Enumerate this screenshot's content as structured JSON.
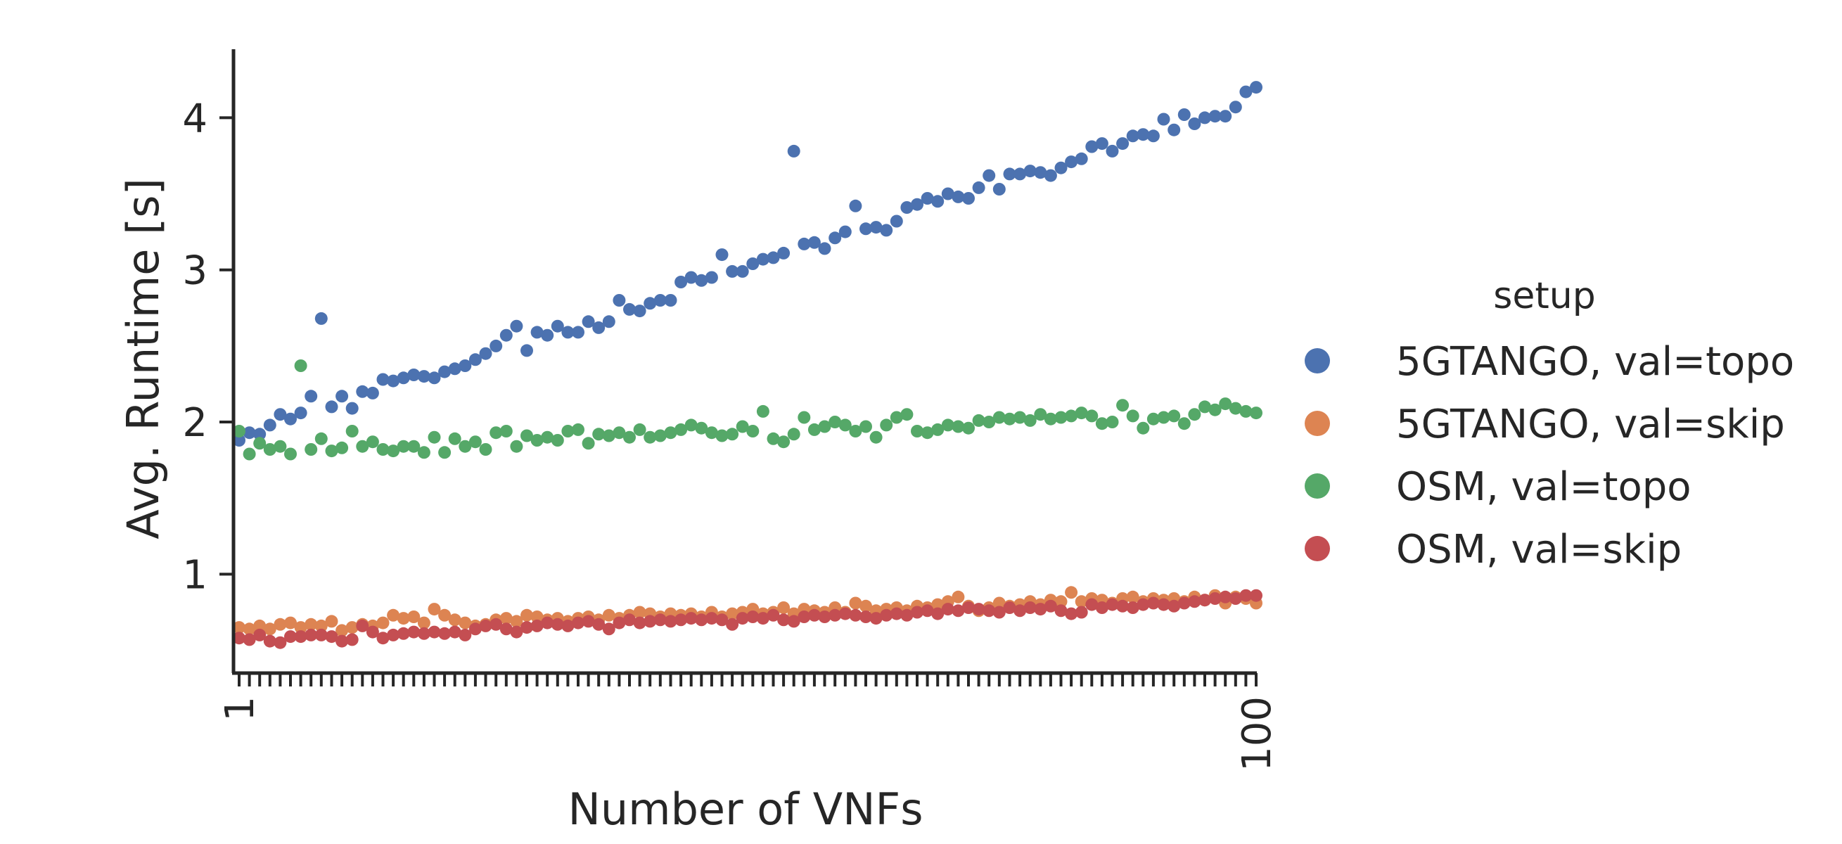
{
  "chart_data": {
    "type": "scatter",
    "title": "",
    "xlabel": "Number of VNFs",
    "ylabel": "Avg. Runtime [s]",
    "xscale": "linear",
    "xlim": [
      1,
      100
    ],
    "ylim": [
      0.35,
      4.45
    ],
    "x_tick_labels": [
      "1",
      "100"
    ],
    "x_tick_values": [
      1,
      100
    ],
    "y_tick_labels": [
      "1",
      "2",
      "3",
      "4"
    ],
    "y_tick_values": [
      1,
      2,
      3,
      4
    ],
    "grid": false,
    "legend": {
      "title": "setup",
      "placement": "right"
    },
    "series": [
      {
        "name": "5GTANGO, val=topo",
        "color": "#4c72b0",
        "x": [
          1,
          2,
          3,
          4,
          5,
          6,
          7,
          8,
          9,
          10,
          11,
          12,
          13,
          14,
          15,
          16,
          17,
          18,
          19,
          20,
          21,
          22,
          23,
          24,
          25,
          26,
          27,
          28,
          29,
          30,
          31,
          32,
          33,
          34,
          35,
          36,
          37,
          38,
          39,
          40,
          41,
          42,
          43,
          44,
          45,
          46,
          47,
          48,
          49,
          50,
          51,
          52,
          53,
          54,
          55,
          56,
          57,
          58,
          59,
          60,
          61,
          62,
          63,
          64,
          65,
          66,
          67,
          68,
          69,
          70,
          71,
          72,
          73,
          74,
          75,
          76,
          77,
          78,
          79,
          80,
          81,
          82,
          83,
          84,
          85,
          86,
          87,
          88,
          89,
          90,
          91,
          92,
          93,
          94,
          95,
          96,
          97,
          98,
          99,
          100
        ],
        "y": [
          1.88,
          1.93,
          1.92,
          1.98,
          2.05,
          2.02,
          2.06,
          2.17,
          2.68,
          2.1,
          2.17,
          2.09,
          2.2,
          2.19,
          2.28,
          2.27,
          2.29,
          2.31,
          2.3,
          2.29,
          2.33,
          2.35,
          2.37,
          2.41,
          2.45,
          2.5,
          2.57,
          2.63,
          2.47,
          2.59,
          2.57,
          2.63,
          2.59,
          2.59,
          2.66,
          2.62,
          2.66,
          2.8,
          2.74,
          2.73,
          2.78,
          2.8,
          2.8,
          2.92,
          2.95,
          2.93,
          2.95,
          3.1,
          2.99,
          2.99,
          3.04,
          3.07,
          3.08,
          3.11,
          3.78,
          3.17,
          3.18,
          3.14,
          3.21,
          3.25,
          3.42,
          3.27,
          3.28,
          3.26,
          3.32,
          3.41,
          3.43,
          3.47,
          3.45,
          3.5,
          3.48,
          3.47,
          3.54,
          3.62,
          3.53,
          3.63,
          3.63,
          3.65,
          3.64,
          3.62,
          3.67,
          3.71,
          3.73,
          3.81,
          3.83,
          3.78,
          3.83,
          3.88,
          3.89,
          3.88,
          3.99,
          3.92,
          4.02,
          3.96,
          4.0,
          4.01,
          4.01,
          4.07,
          4.17,
          4.2
        ]
      },
      {
        "name": "5GTANGO, val=skip",
        "color": "#dd8452",
        "x": [
          1,
          2,
          3,
          4,
          5,
          6,
          7,
          8,
          9,
          10,
          11,
          12,
          13,
          14,
          15,
          16,
          17,
          18,
          19,
          20,
          21,
          22,
          23,
          24,
          25,
          26,
          27,
          28,
          29,
          30,
          31,
          32,
          33,
          34,
          35,
          36,
          37,
          38,
          39,
          40,
          41,
          42,
          43,
          44,
          45,
          46,
          47,
          48,
          49,
          50,
          51,
          52,
          53,
          54,
          55,
          56,
          57,
          58,
          59,
          60,
          61,
          62,
          63,
          64,
          65,
          66,
          67,
          68,
          69,
          70,
          71,
          72,
          73,
          74,
          75,
          76,
          77,
          78,
          79,
          80,
          81,
          82,
          83,
          84,
          85,
          86,
          87,
          88,
          89,
          90,
          91,
          92,
          93,
          94,
          95,
          96,
          97,
          98,
          99,
          100
        ],
        "y": [
          0.65,
          0.64,
          0.66,
          0.64,
          0.67,
          0.68,
          0.65,
          0.67,
          0.66,
          0.69,
          0.63,
          0.65,
          0.67,
          0.66,
          0.68,
          0.73,
          0.71,
          0.72,
          0.68,
          0.77,
          0.73,
          0.7,
          0.68,
          0.66,
          0.67,
          0.7,
          0.71,
          0.69,
          0.73,
          0.72,
          0.7,
          0.71,
          0.69,
          0.71,
          0.72,
          0.7,
          0.73,
          0.71,
          0.73,
          0.75,
          0.74,
          0.72,
          0.74,
          0.73,
          0.74,
          0.72,
          0.75,
          0.72,
          0.74,
          0.75,
          0.77,
          0.74,
          0.75,
          0.78,
          0.74,
          0.77,
          0.76,
          0.75,
          0.78,
          0.75,
          0.81,
          0.79,
          0.76,
          0.77,
          0.78,
          0.76,
          0.79,
          0.78,
          0.8,
          0.82,
          0.85,
          0.79,
          0.76,
          0.78,
          0.81,
          0.79,
          0.8,
          0.82,
          0.8,
          0.83,
          0.82,
          0.88,
          0.82,
          0.84,
          0.83,
          0.81,
          0.84,
          0.85,
          0.82,
          0.84,
          0.83,
          0.84,
          0.82,
          0.85,
          0.83,
          0.86,
          0.81,
          0.85,
          0.84,
          0.81
        ]
      },
      {
        "name": "OSM, val=topo",
        "color": "#55a868",
        "x": [
          1,
          2,
          3,
          4,
          5,
          6,
          7,
          8,
          9,
          10,
          11,
          12,
          13,
          14,
          15,
          16,
          17,
          18,
          19,
          20,
          21,
          22,
          23,
          24,
          25,
          26,
          27,
          28,
          29,
          30,
          31,
          32,
          33,
          34,
          35,
          36,
          37,
          38,
          39,
          40,
          41,
          42,
          43,
          44,
          45,
          46,
          47,
          48,
          49,
          50,
          51,
          52,
          53,
          54,
          55,
          56,
          57,
          58,
          59,
          60,
          61,
          62,
          63,
          64,
          65,
          66,
          67,
          68,
          69,
          70,
          71,
          72,
          73,
          74,
          75,
          76,
          77,
          78,
          79,
          80,
          81,
          82,
          83,
          84,
          85,
          86,
          87,
          88,
          89,
          90,
          91,
          92,
          93,
          94,
          95,
          96,
          97,
          98,
          99,
          100
        ],
        "y": [
          1.94,
          1.79,
          1.86,
          1.82,
          1.84,
          1.79,
          2.37,
          1.82,
          1.89,
          1.81,
          1.83,
          1.94,
          1.84,
          1.87,
          1.82,
          1.81,
          1.84,
          1.84,
          1.8,
          1.9,
          1.8,
          1.89,
          1.84,
          1.87,
          1.82,
          1.93,
          1.94,
          1.84,
          1.91,
          1.88,
          1.9,
          1.88,
          1.94,
          1.95,
          1.86,
          1.92,
          1.91,
          1.93,
          1.9,
          1.95,
          1.9,
          1.91,
          1.93,
          1.95,
          1.98,
          1.96,
          1.93,
          1.91,
          1.92,
          1.97,
          1.94,
          2.07,
          1.89,
          1.87,
          1.92,
          2.03,
          1.95,
          1.97,
          2.0,
          1.98,
          1.94,
          1.97,
          1.9,
          1.98,
          2.03,
          2.05,
          1.94,
          1.93,
          1.95,
          1.98,
          1.97,
          1.96,
          2.01,
          2.0,
          2.03,
          2.02,
          2.03,
          2.01,
          2.05,
          2.02,
          2.03,
          2.04,
          2.06,
          2.04,
          1.99,
          2.0,
          2.11,
          2.04,
          1.96,
          2.02,
          2.03,
          2.04,
          1.99,
          2.05,
          2.1,
          2.08,
          2.12,
          2.09,
          2.07,
          2.06
        ]
      },
      {
        "name": "OSM, val=skip",
        "color": "#c44e52",
        "x": [
          1,
          2,
          3,
          4,
          5,
          6,
          7,
          8,
          9,
          10,
          11,
          12,
          13,
          14,
          15,
          16,
          17,
          18,
          19,
          20,
          21,
          22,
          23,
          24,
          25,
          26,
          27,
          28,
          29,
          30,
          31,
          32,
          33,
          34,
          35,
          36,
          37,
          38,
          39,
          40,
          41,
          42,
          43,
          44,
          45,
          46,
          47,
          48,
          49,
          50,
          51,
          52,
          53,
          54,
          55,
          56,
          57,
          58,
          59,
          60,
          61,
          62,
          63,
          64,
          65,
          66,
          67,
          68,
          69,
          70,
          71,
          72,
          73,
          74,
          75,
          76,
          77,
          78,
          79,
          80,
          81,
          82,
          83,
          84,
          85,
          86,
          87,
          88,
          89,
          90,
          91,
          92,
          93,
          94,
          95,
          96,
          97,
          98,
          99,
          100
        ],
        "y": [
          0.58,
          0.57,
          0.6,
          0.56,
          0.55,
          0.59,
          0.59,
          0.6,
          0.6,
          0.59,
          0.56,
          0.57,
          0.66,
          0.62,
          0.58,
          0.6,
          0.61,
          0.62,
          0.61,
          0.62,
          0.61,
          0.62,
          0.6,
          0.64,
          0.66,
          0.67,
          0.64,
          0.62,
          0.65,
          0.66,
          0.68,
          0.67,
          0.66,
          0.68,
          0.69,
          0.67,
          0.64,
          0.68,
          0.7,
          0.68,
          0.69,
          0.7,
          0.69,
          0.7,
          0.71,
          0.7,
          0.71,
          0.7,
          0.67,
          0.71,
          0.72,
          0.71,
          0.73,
          0.7,
          0.69,
          0.72,
          0.73,
          0.72,
          0.73,
          0.74,
          0.73,
          0.72,
          0.71,
          0.73,
          0.74,
          0.73,
          0.75,
          0.76,
          0.74,
          0.77,
          0.76,
          0.78,
          0.77,
          0.76,
          0.75,
          0.78,
          0.76,
          0.78,
          0.77,
          0.79,
          0.76,
          0.74,
          0.75,
          0.8,
          0.78,
          0.8,
          0.79,
          0.78,
          0.8,
          0.81,
          0.8,
          0.79,
          0.81,
          0.82,
          0.83,
          0.84,
          0.85,
          0.84,
          0.86,
          0.86
        ]
      }
    ]
  }
}
